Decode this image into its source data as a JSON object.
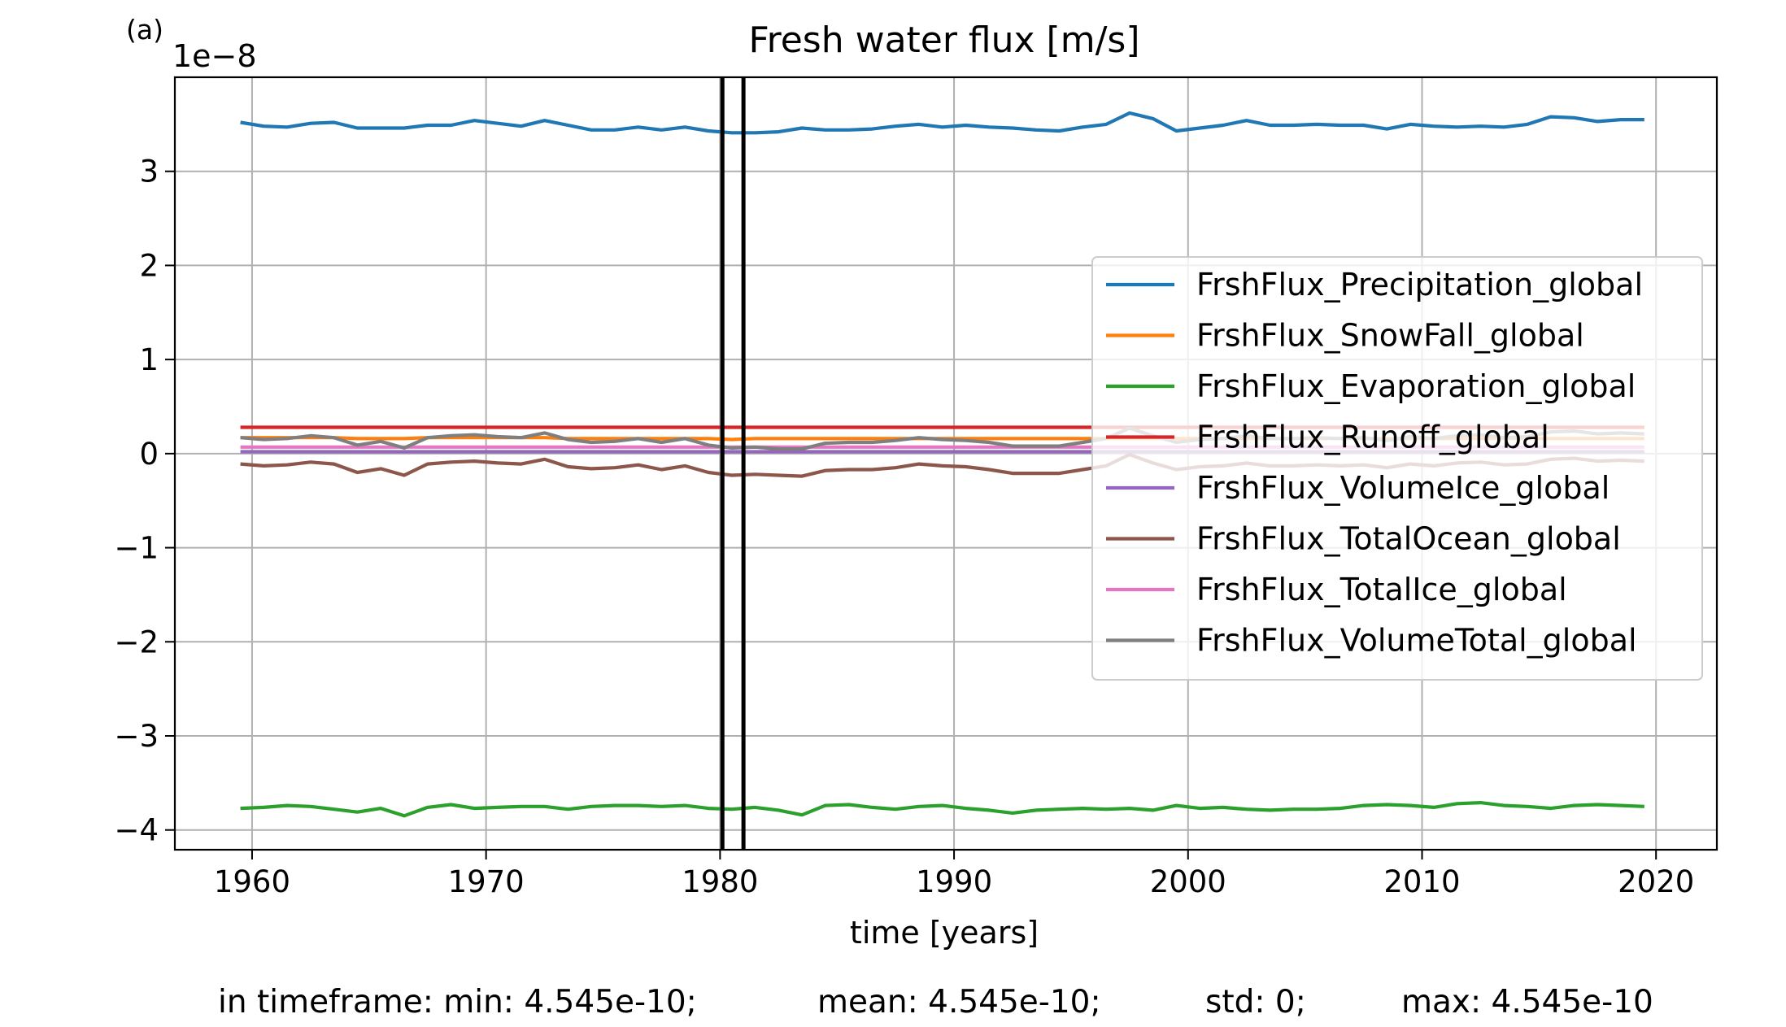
{
  "chart_data": {
    "type": "line",
    "panel_label": "(a)",
    "title": "Fresh water flux [m/s]",
    "xlabel": "time [years]",
    "ylabel": "",
    "y_offset_label": "1e−8",
    "xlim": [
      1956.7,
      2022.6
    ],
    "ylim": [
      -4.21,
      4.0
    ],
    "xticks": [
      1960,
      1970,
      1980,
      1990,
      2000,
      2010,
      2020
    ],
    "xtick_labels": [
      "1960",
      "1970",
      "1980",
      "1990",
      "2000",
      "2010",
      "2020"
    ],
    "yticks": [
      -4,
      -3,
      -2,
      -1,
      0,
      1,
      2,
      3
    ],
    "ytick_labels": [
      "−4",
      "−3",
      "−2",
      "−1",
      "0",
      "1",
      "2",
      "3"
    ],
    "grid": true,
    "legend_position": "center-right",
    "vertical_lines": [
      1980.1,
      1981.0
    ],
    "x": [
      1959.5,
      1960.5,
      1961.5,
      1962.5,
      1963.5,
      1964.5,
      1965.5,
      1966.5,
      1967.5,
      1968.5,
      1969.5,
      1970.5,
      1971.5,
      1972.5,
      1973.5,
      1974.5,
      1975.5,
      1976.5,
      1977.5,
      1978.5,
      1979.5,
      1980.5,
      1981.5,
      1982.5,
      1983.5,
      1984.5,
      1985.5,
      1986.5,
      1987.5,
      1988.5,
      1989.5,
      1990.5,
      1991.5,
      1992.5,
      1993.5,
      1994.5,
      1995.5,
      1996.5,
      1997.5,
      1998.5,
      1999.5,
      2000.5,
      2001.5,
      2002.5,
      2003.5,
      2004.5,
      2005.5,
      2006.5,
      2007.5,
      2008.5,
      2009.5,
      2010.5,
      2011.5,
      2012.5,
      2013.5,
      2014.5,
      2015.5,
      2016.5,
      2017.5,
      2018.5,
      2019.5
    ],
    "series": [
      {
        "name": "FrshFlux_Precipitation_global",
        "color": "#1f77b4",
        "values": [
          3.52,
          3.48,
          3.47,
          3.51,
          3.52,
          3.46,
          3.46,
          3.46,
          3.49,
          3.49,
          3.54,
          3.51,
          3.48,
          3.54,
          3.49,
          3.44,
          3.44,
          3.47,
          3.44,
          3.47,
          3.43,
          3.41,
          3.41,
          3.42,
          3.46,
          3.44,
          3.44,
          3.45,
          3.48,
          3.5,
          3.47,
          3.49,
          3.47,
          3.46,
          3.44,
          3.43,
          3.47,
          3.5,
          3.62,
          3.56,
          3.43,
          3.46,
          3.49,
          3.54,
          3.49,
          3.49,
          3.5,
          3.49,
          3.49,
          3.45,
          3.5,
          3.48,
          3.47,
          3.48,
          3.47,
          3.5,
          3.58,
          3.57,
          3.53,
          3.55,
          3.55
        ]
      },
      {
        "name": "FrshFlux_SnowFall_global",
        "color": "#ff7f0e",
        "values": [
          0.17,
          0.17,
          0.17,
          0.17,
          0.17,
          0.16,
          0.16,
          0.16,
          0.17,
          0.17,
          0.17,
          0.17,
          0.17,
          0.17,
          0.16,
          0.16,
          0.16,
          0.16,
          0.16,
          0.16,
          0.16,
          0.15,
          0.16,
          0.16,
          0.16,
          0.16,
          0.16,
          0.16,
          0.16,
          0.16,
          0.16,
          0.16,
          0.16,
          0.16,
          0.16,
          0.16,
          0.16,
          0.16,
          0.16,
          0.16,
          0.16,
          0.16,
          0.16,
          0.16,
          0.16,
          0.16,
          0.16,
          0.16,
          0.16,
          0.16,
          0.16,
          0.16,
          0.16,
          0.16,
          0.16,
          0.16,
          0.16,
          0.16,
          0.16,
          0.16,
          0.16
        ]
      },
      {
        "name": "FrshFlux_Evaporation_global",
        "color": "#2ca02c",
        "values": [
          -3.77,
          -3.76,
          -3.74,
          -3.75,
          -3.78,
          -3.81,
          -3.77,
          -3.85,
          -3.76,
          -3.73,
          -3.77,
          -3.76,
          -3.75,
          -3.75,
          -3.78,
          -3.75,
          -3.74,
          -3.74,
          -3.75,
          -3.74,
          -3.77,
          -3.78,
          -3.76,
          -3.79,
          -3.84,
          -3.74,
          -3.73,
          -3.76,
          -3.78,
          -3.75,
          -3.74,
          -3.77,
          -3.79,
          -3.82,
          -3.79,
          -3.78,
          -3.77,
          -3.78,
          -3.77,
          -3.79,
          -3.74,
          -3.77,
          -3.76,
          -3.78,
          -3.79,
          -3.78,
          -3.78,
          -3.77,
          -3.74,
          -3.73,
          -3.74,
          -3.76,
          -3.72,
          -3.71,
          -3.74,
          -3.75,
          -3.77,
          -3.74,
          -3.73,
          -3.74,
          -3.75
        ]
      },
      {
        "name": "FrshFlux_Runoff_global",
        "color": "#d62728",
        "values": [
          0.28,
          0.28,
          0.28,
          0.28,
          0.28,
          0.28,
          0.28,
          0.28,
          0.28,
          0.28,
          0.28,
          0.28,
          0.28,
          0.28,
          0.28,
          0.28,
          0.28,
          0.28,
          0.28,
          0.28,
          0.28,
          0.28,
          0.28,
          0.28,
          0.28,
          0.28,
          0.28,
          0.28,
          0.28,
          0.28,
          0.28,
          0.28,
          0.28,
          0.28,
          0.28,
          0.28,
          0.28,
          0.28,
          0.28,
          0.28,
          0.28,
          0.28,
          0.28,
          0.28,
          0.28,
          0.28,
          0.28,
          0.28,
          0.28,
          0.28,
          0.28,
          0.28,
          0.28,
          0.28,
          0.28,
          0.28,
          0.28,
          0.28,
          0.28,
          0.28,
          0.28
        ]
      },
      {
        "name": "FrshFlux_VolumeIce_global",
        "color": "#9467bd",
        "values": [
          0.02,
          0.02,
          0.02,
          0.02,
          0.02,
          0.02,
          0.02,
          0.02,
          0.02,
          0.02,
          0.02,
          0.02,
          0.02,
          0.02,
          0.02,
          0.02,
          0.02,
          0.02,
          0.02,
          0.02,
          0.02,
          0.02,
          0.02,
          0.02,
          0.02,
          0.02,
          0.02,
          0.02,
          0.02,
          0.02,
          0.02,
          0.02,
          0.02,
          0.02,
          0.02,
          0.02,
          0.02,
          0.02,
          0.02,
          0.02,
          0.02,
          0.02,
          0.02,
          0.02,
          0.02,
          0.02,
          0.02,
          0.02,
          0.02,
          0.02,
          0.02,
          0.02,
          0.02,
          0.02,
          0.02,
          0.02,
          0.02,
          0.02,
          0.02,
          0.02,
          0.02
        ]
      },
      {
        "name": "FrshFlux_TotalOcean_global",
        "color": "#8c564b",
        "values": [
          -0.11,
          -0.13,
          -0.12,
          -0.09,
          -0.11,
          -0.2,
          -0.16,
          -0.23,
          -0.11,
          -0.09,
          -0.08,
          -0.1,
          -0.11,
          -0.06,
          -0.14,
          -0.16,
          -0.15,
          -0.12,
          -0.17,
          -0.13,
          -0.2,
          -0.23,
          -0.22,
          -0.23,
          -0.24,
          -0.18,
          -0.17,
          -0.17,
          -0.15,
          -0.11,
          -0.13,
          -0.14,
          -0.17,
          -0.21,
          -0.21,
          -0.21,
          -0.17,
          -0.13,
          -0.01,
          -0.1,
          -0.17,
          -0.14,
          -0.13,
          -0.1,
          -0.13,
          -0.13,
          -0.12,
          -0.13,
          -0.12,
          -0.15,
          -0.11,
          -0.13,
          -0.1,
          -0.09,
          -0.12,
          -0.11,
          -0.06,
          -0.05,
          -0.08,
          -0.07,
          -0.08
        ]
      },
      {
        "name": "FrshFlux_TotalIce_global",
        "color": "#e377c2",
        "values": [
          0.07,
          0.07,
          0.07,
          0.07,
          0.07,
          0.07,
          0.07,
          0.07,
          0.07,
          0.07,
          0.07,
          0.07,
          0.07,
          0.07,
          0.07,
          0.07,
          0.07,
          0.07,
          0.07,
          0.07,
          0.07,
          0.07,
          0.07,
          0.07,
          0.07,
          0.07,
          0.07,
          0.07,
          0.07,
          0.07,
          0.07,
          0.07,
          0.07,
          0.07,
          0.07,
          0.07,
          0.07,
          0.07,
          0.07,
          0.07,
          0.07,
          0.07,
          0.07,
          0.07,
          0.07,
          0.07,
          0.07,
          0.07,
          0.07,
          0.07,
          0.07,
          0.07,
          0.07,
          0.07,
          0.07,
          0.07,
          0.07,
          0.07,
          0.07,
          0.07,
          0.07
        ]
      },
      {
        "name": "FrshFlux_VolumeTotal_global",
        "color": "#7f7f7f",
        "values": [
          0.17,
          0.15,
          0.16,
          0.19,
          0.17,
          0.09,
          0.13,
          0.06,
          0.17,
          0.19,
          0.2,
          0.18,
          0.17,
          0.22,
          0.15,
          0.12,
          0.13,
          0.16,
          0.12,
          0.16,
          0.09,
          0.06,
          0.07,
          0.05,
          0.05,
          0.11,
          0.12,
          0.12,
          0.14,
          0.17,
          0.15,
          0.14,
          0.12,
          0.08,
          0.08,
          0.08,
          0.12,
          0.16,
          0.27,
          0.19,
          0.12,
          0.15,
          0.16,
          0.19,
          0.16,
          0.16,
          0.17,
          0.16,
          0.17,
          0.14,
          0.18,
          0.16,
          0.19,
          0.2,
          0.17,
          0.18,
          0.23,
          0.24,
          0.21,
          0.22,
          0.21
        ]
      }
    ],
    "summary": {
      "min": "in timeframe: min: 4.545e-10;",
      "mean": "mean: 4.545e-10;",
      "std": "std: 0;",
      "max": "max: 4.545e-10"
    }
  }
}
